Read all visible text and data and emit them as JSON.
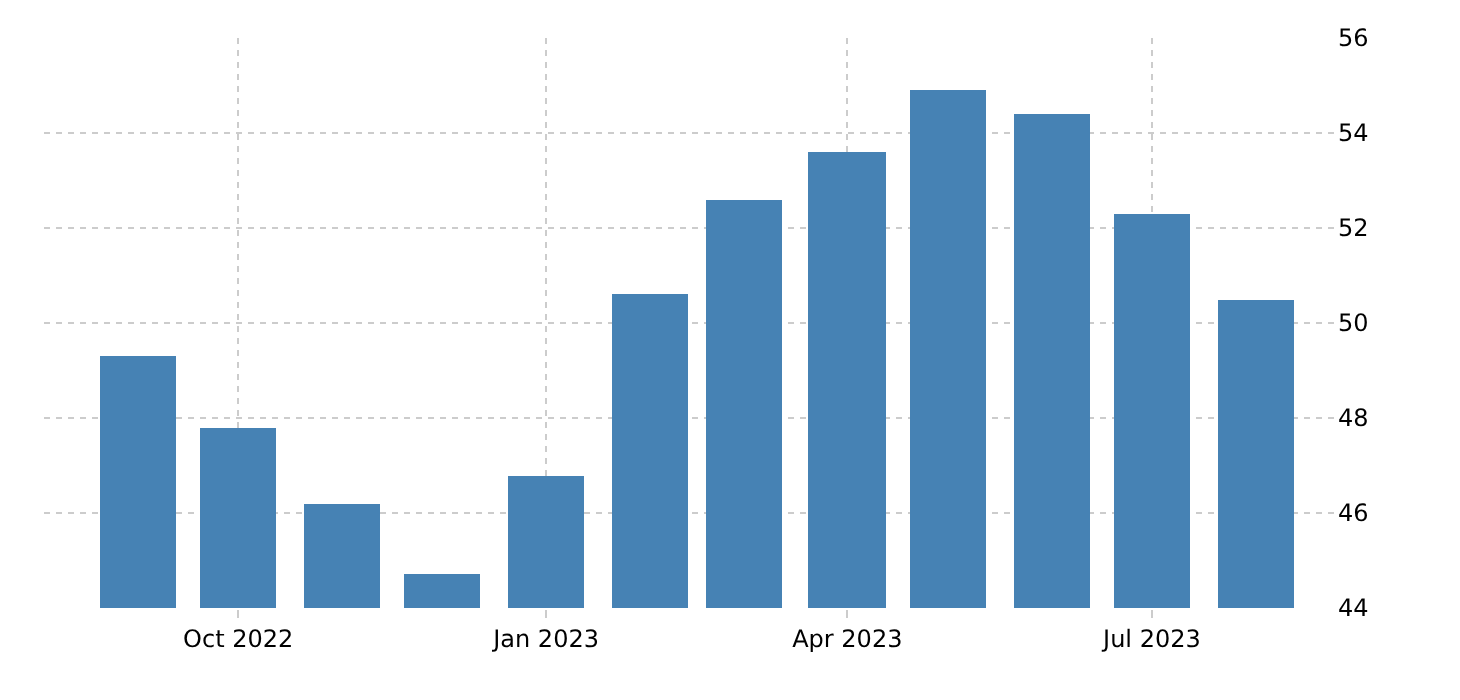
{
  "chart_data": {
    "type": "bar",
    "x": [
      "2022-09",
      "2022-10",
      "2022-11",
      "2022-12",
      "2023-01",
      "2023-02",
      "2023-03",
      "2023-04",
      "2023-05",
      "2023-06",
      "2023-07",
      "2023-08"
    ],
    "values": [
      49.3,
      47.8,
      46.2,
      44.7,
      46.8,
      50.6,
      52.6,
      53.6,
      54.9,
      54.4,
      52.3,
      50.5
    ],
    "color": "#4682b4",
    "xlim": [
      "2022-08-04",
      "2023-08-25"
    ],
    "xticks": [
      {
        "value": "2022-10",
        "label": "Oct 2022"
      },
      {
        "value": "2023-01",
        "label": "Jan 2023"
      },
      {
        "value": "2023-04",
        "label": "Apr 2023"
      },
      {
        "value": "2023-07",
        "label": "Jul 2023"
      }
    ],
    "ylim": [
      44,
      56
    ],
    "yticks": [
      44,
      46,
      48,
      50,
      52,
      54,
      56
    ],
    "grid": true
  }
}
